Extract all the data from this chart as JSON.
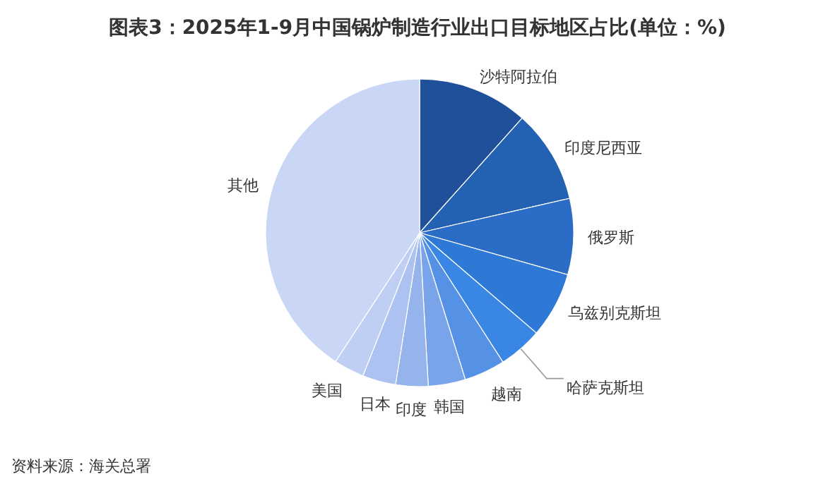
{
  "chart_data": {
    "type": "pie",
    "title": "图表3：2025年1-9月中国锅炉制造行业出口目标地区占比(单位：%)",
    "categories": [
      "沙特阿拉伯",
      "印度尼西亚",
      "俄罗斯",
      "乌兹别克斯坦",
      "哈萨克斯坦",
      "越南",
      "韩国",
      "印度",
      "日本",
      "美国",
      "其他"
    ],
    "values": [
      11.6,
      9.8,
      8.0,
      6.9,
      4.6,
      4.3,
      3.9,
      3.4,
      3.5,
      3.2,
      40.8
    ],
    "colors": [
      "#1f5099",
      "#2361b2",
      "#2b6dc6",
      "#2f79d6",
      "#3a86e4",
      "#5592e6",
      "#7aa4ea",
      "#96b4ec",
      "#adc2f0",
      "#bfcff4",
      "#c9d6f5"
    ],
    "annotations": [
      "资料来源：海关总署"
    ]
  }
}
